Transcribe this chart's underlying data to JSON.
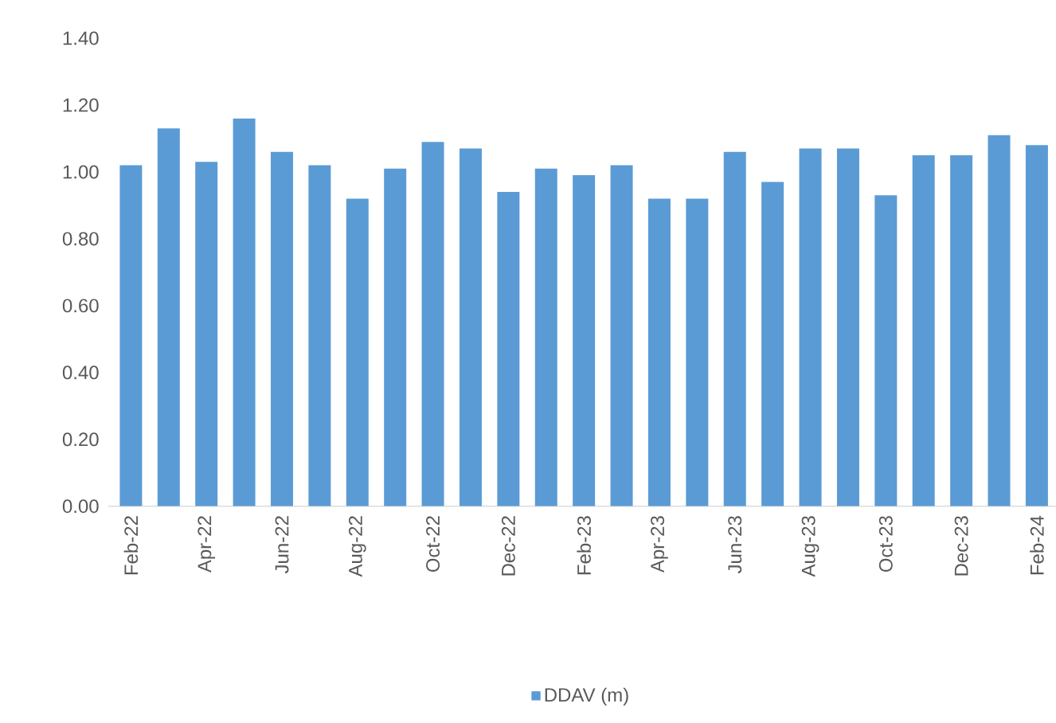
{
  "chart_data": {
    "type": "bar",
    "categories": [
      "Feb-22",
      null,
      "Apr-22",
      null,
      "Jun-22",
      null,
      "Aug-22",
      null,
      "Oct-22",
      null,
      "Dec-22",
      null,
      "Feb-23",
      null,
      "Apr-23",
      null,
      "Jun-23",
      null,
      "Aug-23",
      null,
      "Oct-23",
      null,
      "Dec-23",
      null,
      "Feb-24"
    ],
    "series": [
      {
        "name": "DDAV (m)",
        "color": "#5b9bd5",
        "values": [
          1.02,
          1.13,
          1.03,
          1.16,
          1.06,
          1.02,
          0.92,
          1.01,
          1.09,
          1.07,
          0.94,
          1.01,
          0.99,
          1.02,
          0.92,
          0.92,
          1.06,
          0.97,
          1.07,
          1.07,
          0.93,
          1.05,
          1.05,
          1.11,
          1.08
        ]
      }
    ],
    "ylim": [
      0,
      1.4
    ],
    "yticks": [
      {
        "value": 0,
        "label": "0.00"
      },
      {
        "value": 0.2,
        "label": "0.20"
      },
      {
        "value": 0.4,
        "label": "0.40"
      },
      {
        "value": 0.6,
        "label": "0.60"
      },
      {
        "value": 0.8,
        "label": "0.80"
      },
      {
        "value": 1.0,
        "label": "1.00"
      },
      {
        "value": 1.2,
        "label": "1.20"
      },
      {
        "value": 1.4,
        "label": "1.40"
      }
    ],
    "legend": "bottom"
  }
}
